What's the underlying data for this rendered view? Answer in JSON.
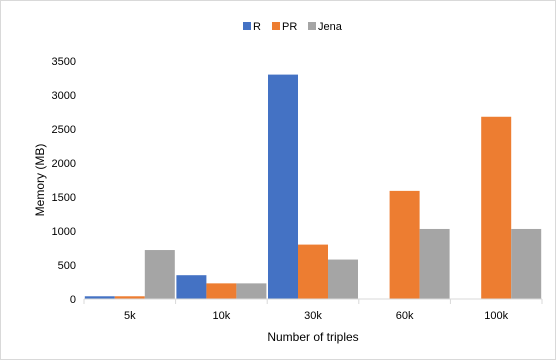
{
  "chart_data": {
    "type": "bar",
    "title": "",
    "xlabel": "Number  of triples",
    "ylabel": "Memory (MB)",
    "categories": [
      "5k",
      "10k",
      "30k",
      "60k",
      "100k"
    ],
    "series": [
      {
        "name": "R",
        "values": [
          40,
          350,
          3300,
          0,
          0
        ],
        "color": "#4472c4"
      },
      {
        "name": "PR",
        "values": [
          40,
          230,
          800,
          1590,
          2680
        ],
        "color": "#ed7d31"
      },
      {
        "name": "Jena",
        "values": [
          720,
          230,
          580,
          1030,
          1030
        ],
        "color": "#a5a5a5"
      }
    ],
    "ylim": [
      0,
      3500
    ],
    "yticks": [
      "0",
      "500",
      "1000",
      "1500",
      "2000",
      "2500",
      "3000",
      "3500"
    ],
    "grid": false,
    "legend_position": "top-center"
  }
}
